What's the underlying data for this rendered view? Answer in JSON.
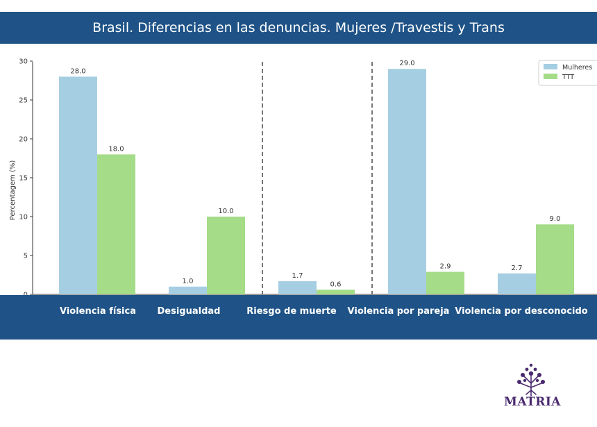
{
  "header": {
    "title": "Brasil. Diferencias en las denuncias. Mujeres /Travestis y Trans"
  },
  "chart_data": {
    "type": "bar",
    "categories": [
      "Violencia física",
      "Desigualdad",
      "Riesgo de muerte",
      "Violencia por pareja",
      "Violencia por desconocido"
    ],
    "series": [
      {
        "name": "Mulheres",
        "values": [
          28.0,
          1.0,
          1.7,
          29.0,
          2.7
        ],
        "color": "#a6cee3"
      },
      {
        "name": "TTT",
        "values": [
          18.0,
          10.0,
          0.6,
          2.9,
          9.0
        ],
        "color": "#a4dc88"
      }
    ],
    "data_labels": [
      [
        "28.0",
        "1.0",
        "1.7",
        "29.0",
        "2.7"
      ],
      [
        "18.0",
        "10.0",
        "0.6",
        "2.9",
        "9.0"
      ]
    ],
    "ylabel": "Percentagem (%)",
    "yticks": [
      0,
      5,
      10,
      15,
      20,
      25,
      30
    ],
    "ylim": [
      0,
      30
    ],
    "legend_position": "top-right",
    "grid": false
  },
  "logo": {
    "text": "MATRIA",
    "color": "#4a2a6e"
  }
}
